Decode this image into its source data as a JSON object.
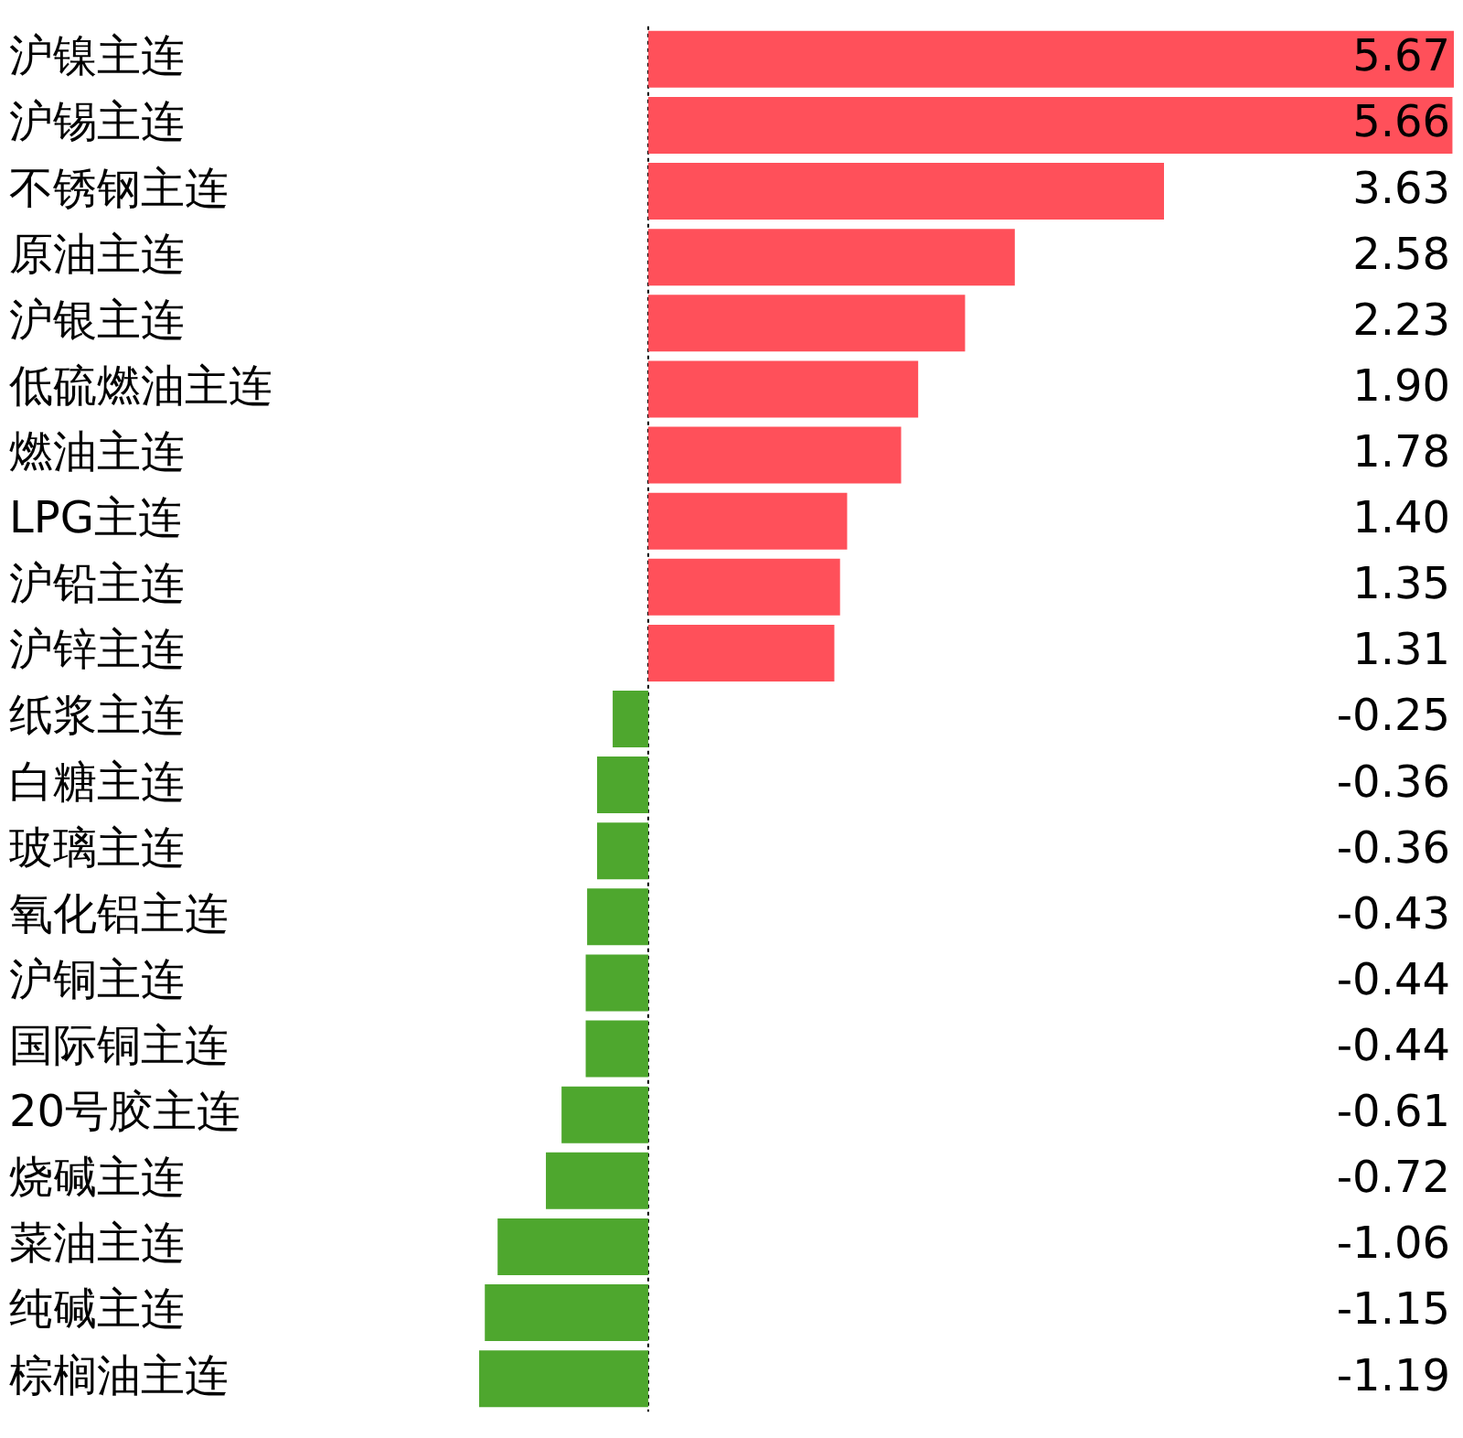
{
  "chart_data": {
    "type": "bar",
    "orientation": "horizontal",
    "categories": [
      "沪镍主连",
      "沪锡主连",
      "不锈钢主连",
      "原油主连",
      "沪银主连",
      "低硫燃油主连",
      "燃油主连",
      "LPG主连",
      "沪铅主连",
      "沪锌主连",
      "纸浆主连",
      "白糖主连",
      "玻璃主连",
      "氧化铝主连",
      "沪铜主连",
      "国际铜主连",
      "20号胶主连",
      "烧碱主连",
      "菜油主连",
      "纯碱主连",
      "棕榈油主连"
    ],
    "values": [
      5.67,
      5.66,
      3.63,
      2.58,
      2.23,
      1.9,
      1.78,
      1.4,
      1.35,
      1.31,
      -0.25,
      -0.36,
      -0.36,
      -0.43,
      -0.44,
      -0.44,
      -0.61,
      -0.72,
      -1.06,
      -1.15,
      -1.19
    ],
    "colors": [
      "#ff505a",
      "#ff505a",
      "#ff505a",
      "#ff505a",
      "#ff505a",
      "#ff505a",
      "#ff505a",
      "#ff505a",
      "#ff505a",
      "#ff505a",
      "#4ea72e",
      "#4ea72e",
      "#4ea72e",
      "#4ea72e",
      "#4ea72e",
      "#4ea72e",
      "#4ea72e",
      "#4ea72e",
      "#4ea72e",
      "#4ea72e",
      "#4ea72e"
    ],
    "value_labels": [
      "5.67",
      "5.66",
      "3.63",
      "2.58",
      "2.23",
      "1.90",
      "1.78",
      "1.40",
      "1.35",
      "1.31",
      "-0.25",
      "-0.36",
      "-0.36",
      "-0.43",
      "-0.44",
      "-0.44",
      "-0.61",
      "-0.72",
      "-1.06",
      "-1.15",
      "-1.19"
    ],
    "xlim": [
      -1.19,
      5.67
    ],
    "ref_lines": [
      {
        "axis": "x",
        "value": 0,
        "color": "#000000",
        "line_style": "dotted"
      }
    ],
    "tick_labels": "y",
    "grid": false,
    "legend": false
  }
}
